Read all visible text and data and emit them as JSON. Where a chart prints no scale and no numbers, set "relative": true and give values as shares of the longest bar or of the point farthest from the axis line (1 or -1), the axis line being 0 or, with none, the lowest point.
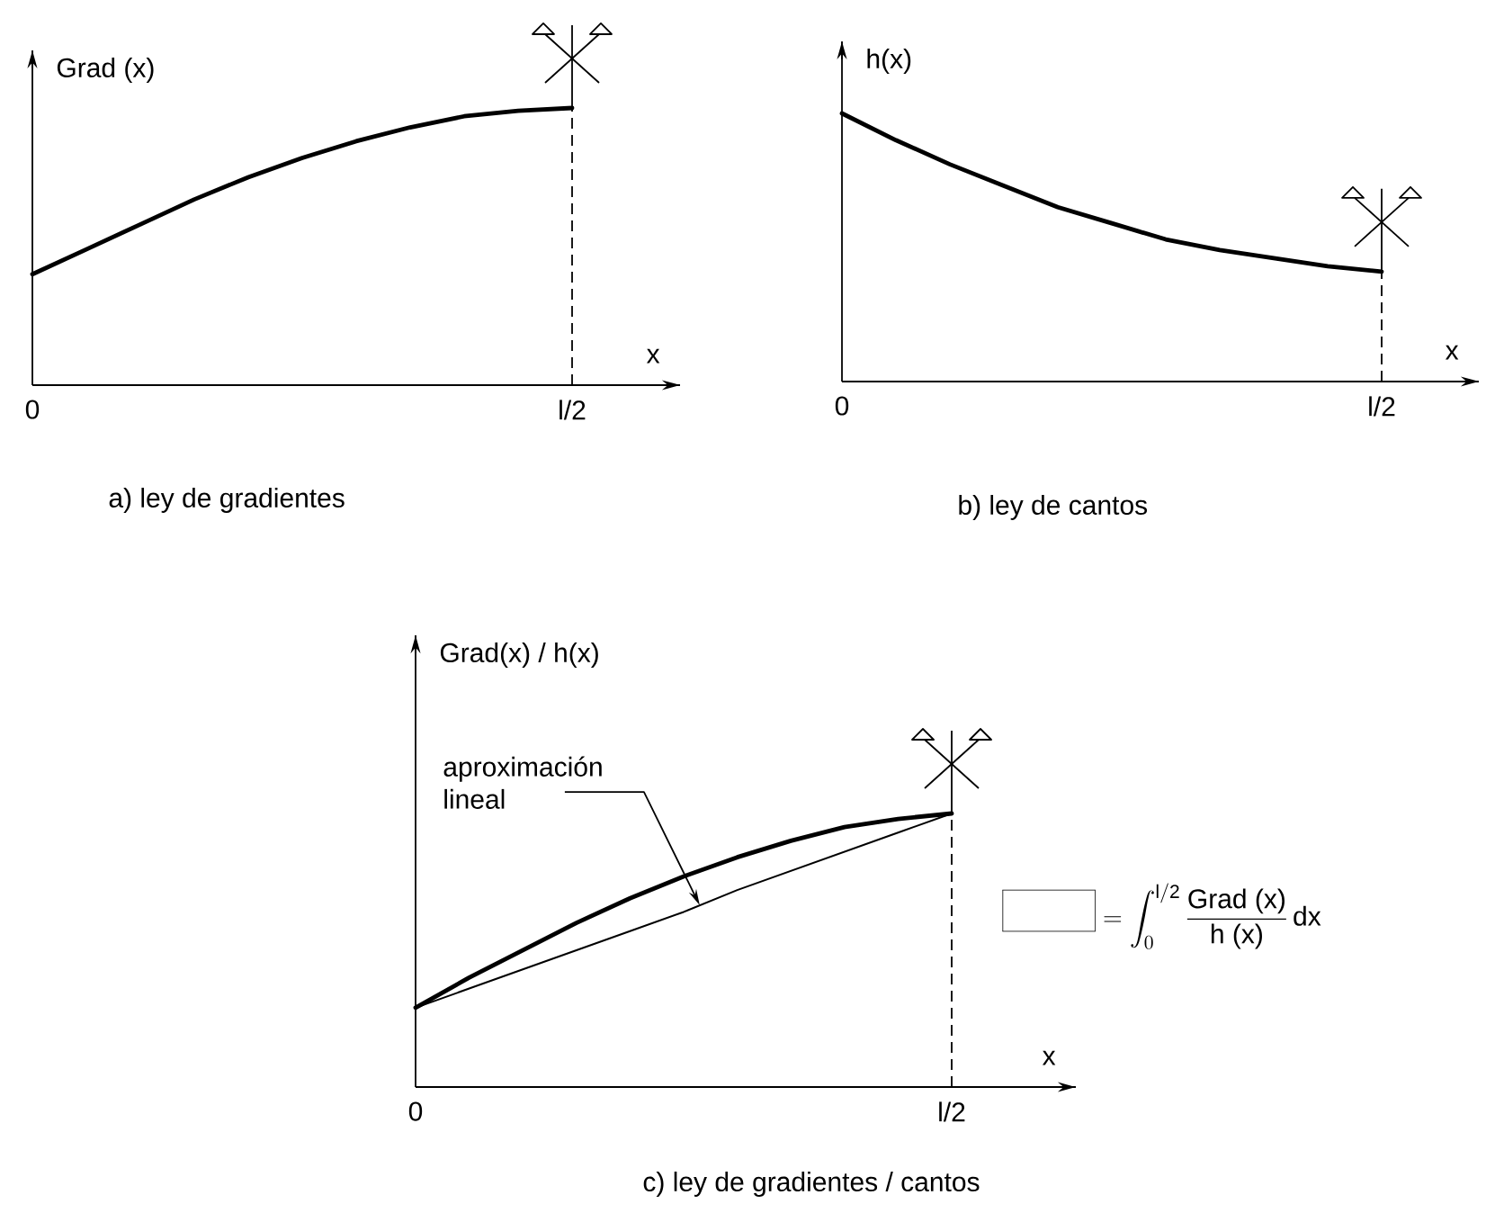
{
  "chart_data": [
    {
      "type": "line",
      "title": "a) ley de gradientes",
      "ylabel": "Grad (x)",
      "xlabel": "x",
      "relative": true,
      "categories": [
        "0",
        null,
        null,
        null,
        null,
        null,
        null,
        null,
        null,
        null,
        "l/2"
      ],
      "series": [
        {
          "color": "#000000",
          "values": [
            0.4,
            0.49,
            0.58,
            0.67,
            0.75,
            0.82,
            0.88,
            0.93,
            0.97,
            0.99,
            1
          ]
        }
      ],
      "tick_labels": "x",
      "ref_lines": [
        {
          "axis": "x",
          "value": "l/2",
          "line_style": "dashed"
        }
      ]
    },
    {
      "type": "line",
      "title": "b) ley de cantos",
      "ylabel": "h(x)",
      "xlabel": "x",
      "relative": true,
      "categories": [
        "0",
        null,
        null,
        null,
        null,
        null,
        null,
        null,
        null,
        null,
        "l/2"
      ],
      "series": [
        {
          "color": "#000000",
          "values": [
            1,
            0.9,
            0.81,
            0.73,
            0.65,
            0.59,
            0.53,
            0.49,
            0.46,
            0.43,
            0.41
          ]
        }
      ],
      "tick_labels": "x",
      "ref_lines": [
        {
          "axis": "x",
          "value": "l/2",
          "line_style": "dashed"
        }
      ]
    },
    {
      "type": "line",
      "title": "c) ley de gradientes / cantos",
      "ylabel": "Grad(x) / h(x)",
      "xlabel": "x",
      "relative": true,
      "categories": [
        "0",
        null,
        null,
        null,
        null,
        null,
        null,
        null,
        null,
        null,
        "l/2"
      ],
      "series": [
        {
          "color": "#000000",
          "values": [
            0.29,
            0.4,
            0.5,
            0.6,
            0.69,
            0.77,
            0.84,
            0.9,
            0.95,
            0.98,
            1
          ]
        },
        {
          "name": "aproximación lineal",
          "color": "#000000",
          "values": [
            0.29,
            0.36,
            0.43,
            0.5,
            0.57,
            0.64,
            0.72,
            0.79,
            0.86,
            0.93,
            1
          ]
        }
      ],
      "tick_labels": "x",
      "ref_lines": [
        {
          "axis": "x",
          "value": "l/2",
          "line_style": "dashed"
        }
      ],
      "annotations": [
        "\\fbox{\\rule{0pt}{1.1em}\\hspace{3em}} = \\int_{0}^{\\mathrm{l/2}} \\frac{\\mbox{Grad (x)}}{\\mbox{h (x)}}\\,\\mbox{dx}"
      ]
    }
  ]
}
